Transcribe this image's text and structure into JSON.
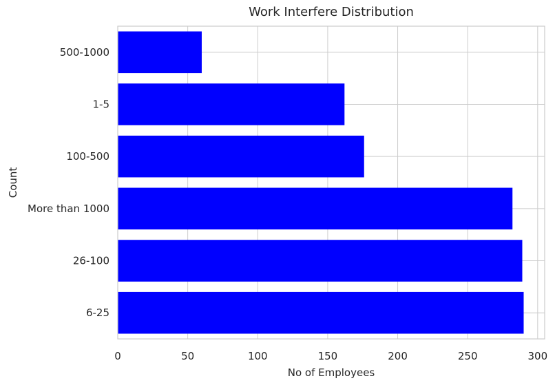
{
  "chart_data": {
    "type": "bar",
    "orientation": "horizontal",
    "title": "Work Interfere Distribution",
    "xlabel": "No of Employees",
    "ylabel": "Count",
    "categories": [
      "500-1000",
      "1-5",
      "100-500",
      "More than 1000",
      "26-100",
      "6-25"
    ],
    "values": [
      60,
      162,
      176,
      282,
      289,
      290
    ],
    "xlim": [
      0,
      305
    ],
    "xticks": [
      0,
      50,
      100,
      150,
      200,
      250,
      300
    ],
    "grid": true,
    "bar_color": "#0000ff",
    "grid_color": "#cccccc",
    "text_color": "#262626"
  }
}
